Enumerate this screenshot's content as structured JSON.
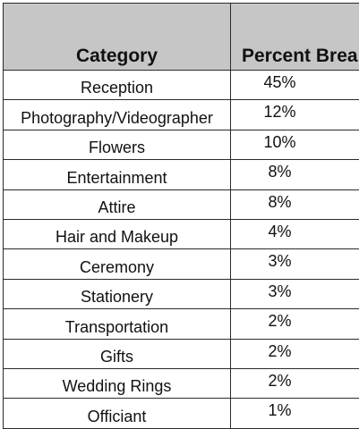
{
  "table": {
    "headers": {
      "category": "Category",
      "percent": "Percent Breakdown"
    },
    "rows": [
      {
        "category": "Reception",
        "percent": "45%"
      },
      {
        "category": "Photography/Videographer",
        "percent": "12%"
      },
      {
        "category": "Flowers",
        "percent": "10%"
      },
      {
        "category": "Entertainment",
        "percent": "8%"
      },
      {
        "category": "Attire",
        "percent": "8%"
      },
      {
        "category": "Hair and Makeup",
        "percent": "4%"
      },
      {
        "category": "Ceremony",
        "percent": "3%"
      },
      {
        "category": "Stationery",
        "percent": "3%"
      },
      {
        "category": "Transportation",
        "percent": "2%"
      },
      {
        "category": "Gifts",
        "percent": "2%"
      },
      {
        "category": "Wedding Rings",
        "percent": "2%"
      },
      {
        "category": "Officiant",
        "percent": "1%"
      }
    ],
    "header_fill": "#c6c6c6",
    "border_color": "#2b2b2b"
  }
}
